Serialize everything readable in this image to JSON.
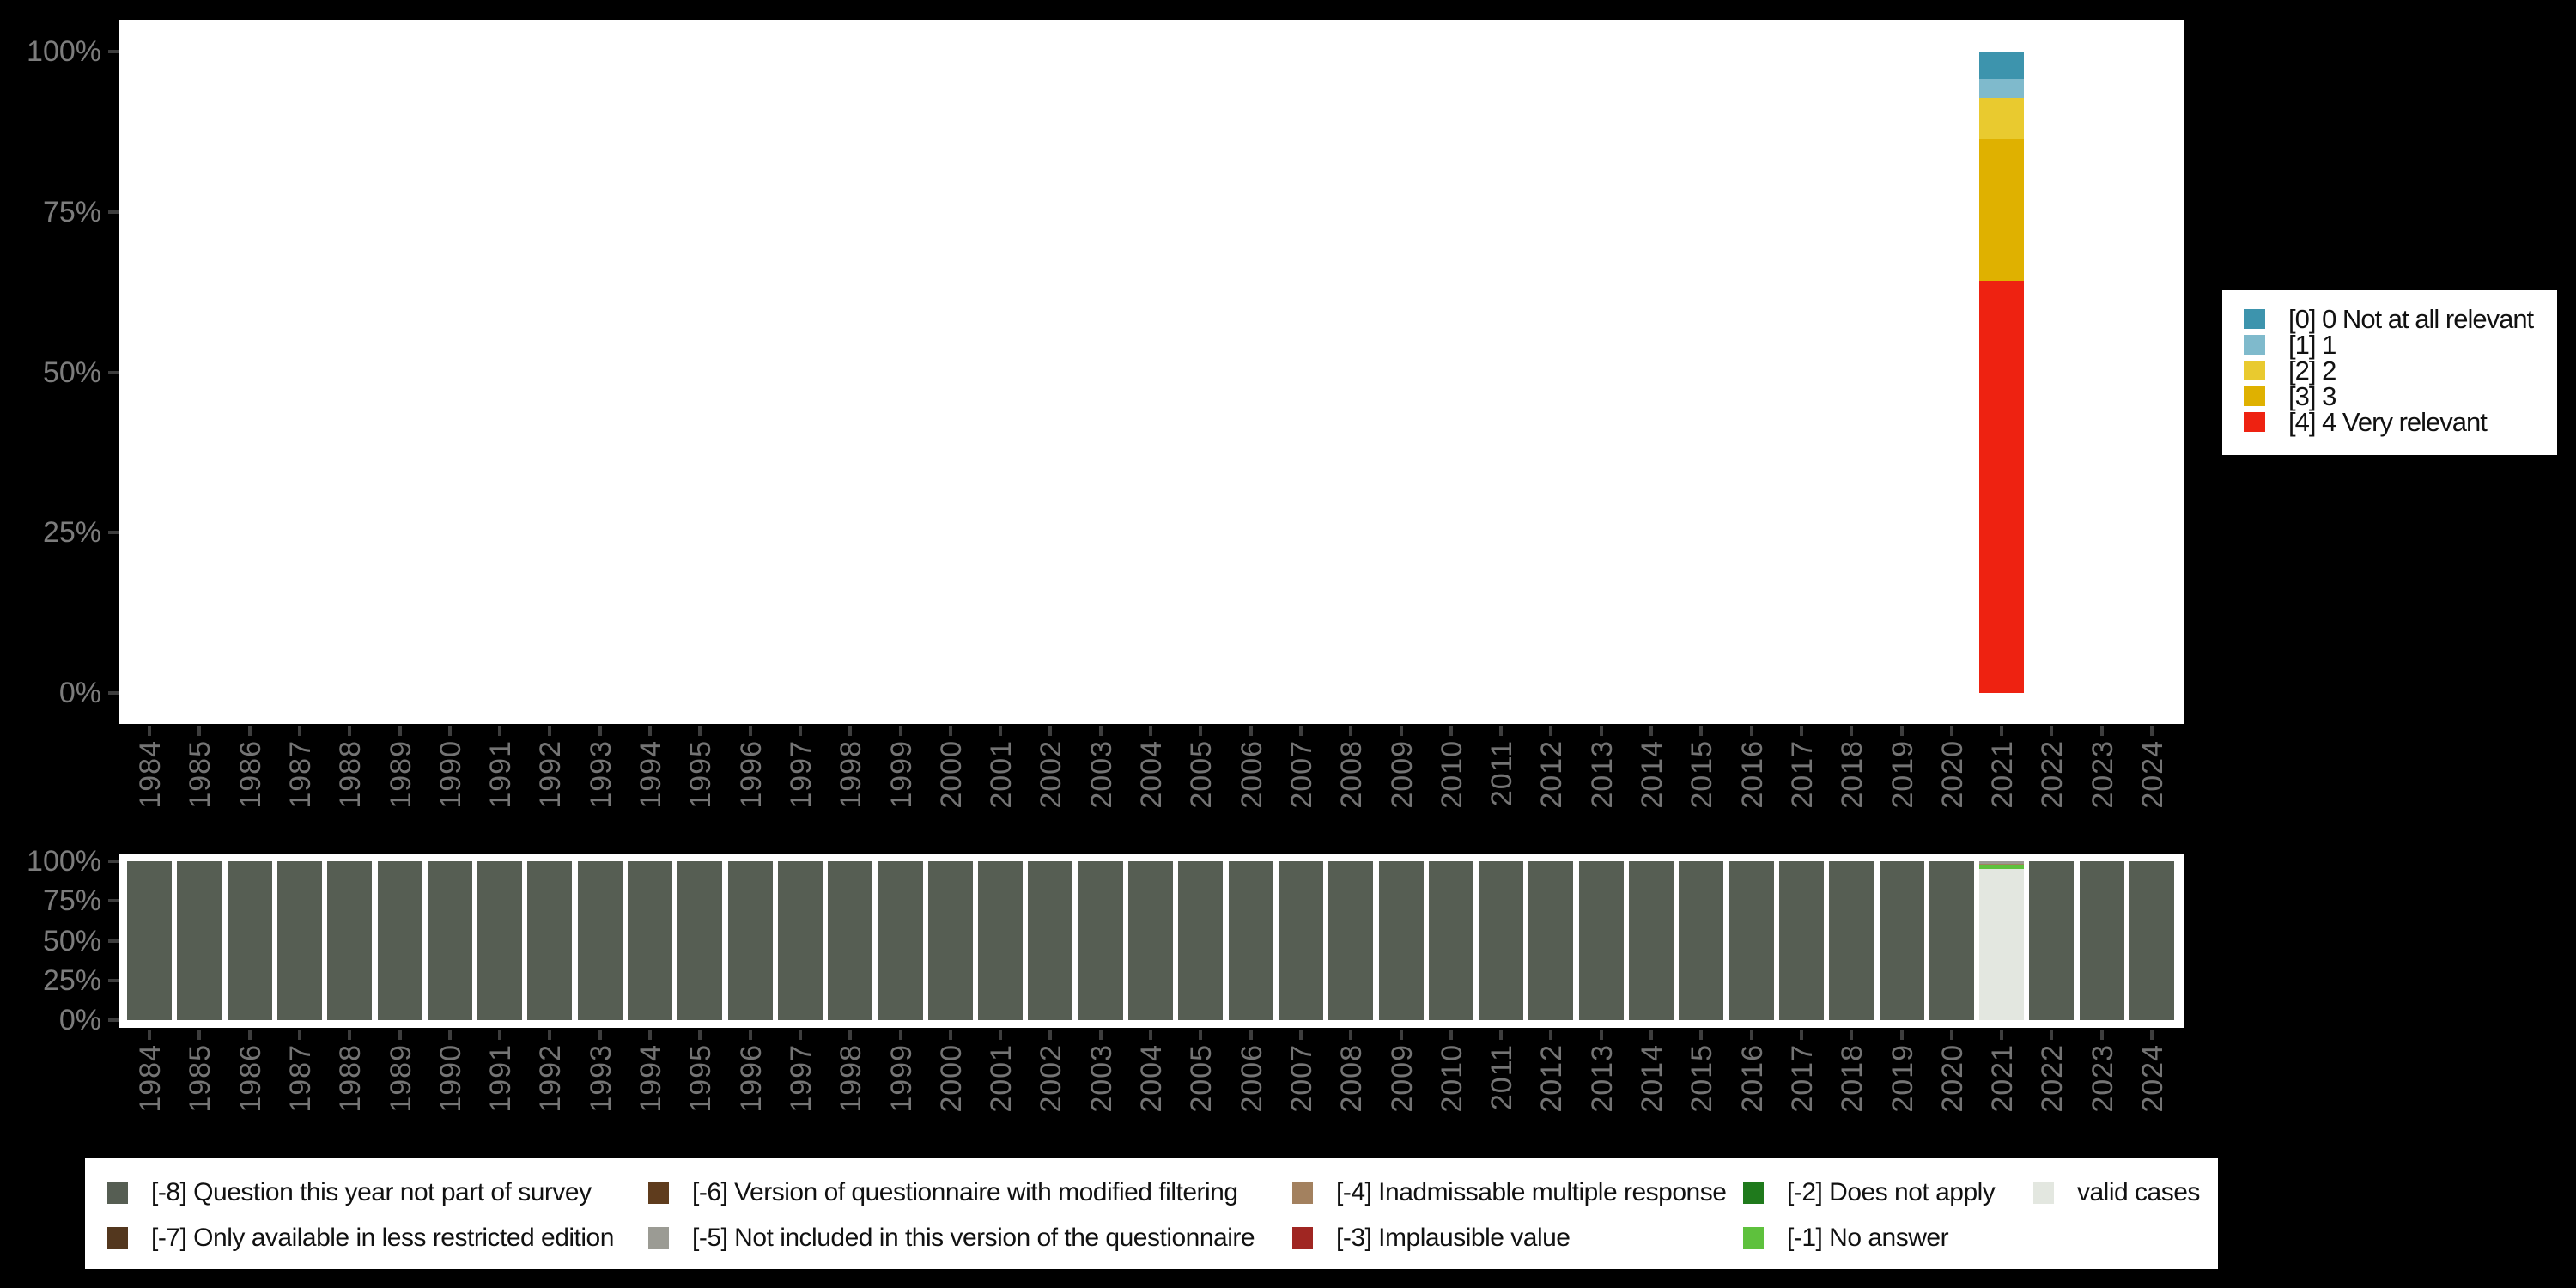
{
  "yticks": [
    "0%",
    "25%",
    "50%",
    "75%",
    "100%"
  ],
  "years": [
    "1984",
    "1985",
    "1986",
    "1987",
    "1988",
    "1989",
    "1990",
    "1991",
    "1992",
    "1993",
    "1994",
    "1995",
    "1996",
    "1997",
    "1998",
    "1999",
    "2000",
    "2001",
    "2002",
    "2003",
    "2004",
    "2005",
    "2006",
    "2007",
    "2008",
    "2009",
    "2010",
    "2011",
    "2012",
    "2013",
    "2014",
    "2015",
    "2016",
    "2017",
    "2018",
    "2019",
    "2020",
    "2021",
    "2022",
    "2023",
    "2024"
  ],
  "chart_data": [
    {
      "name": "value-distribution-by-year",
      "type": "bar",
      "stacked": true,
      "categories_note": "years 1984-2024, see top-level years array",
      "ylim": [
        0,
        100
      ],
      "yticks": [
        "0%",
        "25%",
        "50%",
        "75%",
        "100%"
      ],
      "grid": false,
      "legend_position": "right",
      "series": [
        {
          "key": "v0",
          "label": "[0] 0 Not at all relevant",
          "color": "#3d94ad",
          "default": 0,
          "by_year": {
            "2021": 4.3
          }
        },
        {
          "key": "v1",
          "label": "[1] 1",
          "color": "#7fbacc",
          "default": 0,
          "by_year": {
            "2021": 2.9
          }
        },
        {
          "key": "v2",
          "label": "[2] 2",
          "color": "#e9ca2f",
          "default": 0,
          "by_year": {
            "2021": 6.5
          }
        },
        {
          "key": "v3",
          "label": "[3] 3",
          "color": "#dfb100",
          "default": 0,
          "by_year": {
            "2021": 22.0
          }
        },
        {
          "key": "v4",
          "label": "[4] 4 Very relevant",
          "color": "#ee2211",
          "default": 0,
          "by_year": {
            "2021": 64.3
          }
        }
      ]
    },
    {
      "name": "missing-values-by-year",
      "type": "bar",
      "stacked": true,
      "categories_note": "years 1984-2024, see top-level years array",
      "ylim": [
        0,
        100
      ],
      "yticks": [
        "0%",
        "25%",
        "50%",
        "75%",
        "100%"
      ],
      "grid": false,
      "legend_position": "bottom",
      "series": [
        {
          "key": "m8",
          "label": "[-8] Question this year not part of survey",
          "color": "#565e53",
          "default": 100,
          "by_year": {
            "2021": 0
          }
        },
        {
          "key": "m7",
          "label": "[-7] Only available in less restricted edition",
          "color": "#53371e",
          "default": 0,
          "by_year": {}
        },
        {
          "key": "m6",
          "label": "[-6] Version of questionnaire with modified filtering",
          "color": "#5f3c1d",
          "default": 0,
          "by_year": {}
        },
        {
          "key": "m5",
          "label": "[-5] Not included in this version of the questionnaire",
          "color": "#9b9b94",
          "default": 0,
          "by_year": {
            "2021": 1.4
          }
        },
        {
          "key": "m4",
          "label": "[-4] Inadmissable multiple response",
          "color": "#a3815f",
          "default": 0,
          "by_year": {
            "2021": 0.5
          }
        },
        {
          "key": "m3",
          "label": "[-3] Implausible value",
          "color": "#a02622",
          "default": 0,
          "by_year": {
            "2021": 0.5
          }
        },
        {
          "key": "m2",
          "label": "[-2] Does not apply",
          "color": "#1f7a1c",
          "default": 0,
          "by_year": {}
        },
        {
          "key": "m1",
          "label": "[-1] No answer",
          "color": "#5ec13d",
          "default": 0,
          "by_year": {
            "2021": 2.4
          }
        },
        {
          "key": "valid",
          "label": "valid cases",
          "color": "#e3e7e0",
          "default": 0,
          "by_year": {
            "2021": 95.2
          }
        }
      ]
    }
  ],
  "palette": {
    "background": "#000000",
    "plot_background": "#ffffff",
    "axis_label": "#7c7c7c",
    "year_label": "#747474",
    "tick_mark": "#3e3e3e",
    "legend_text": "#111111"
  }
}
